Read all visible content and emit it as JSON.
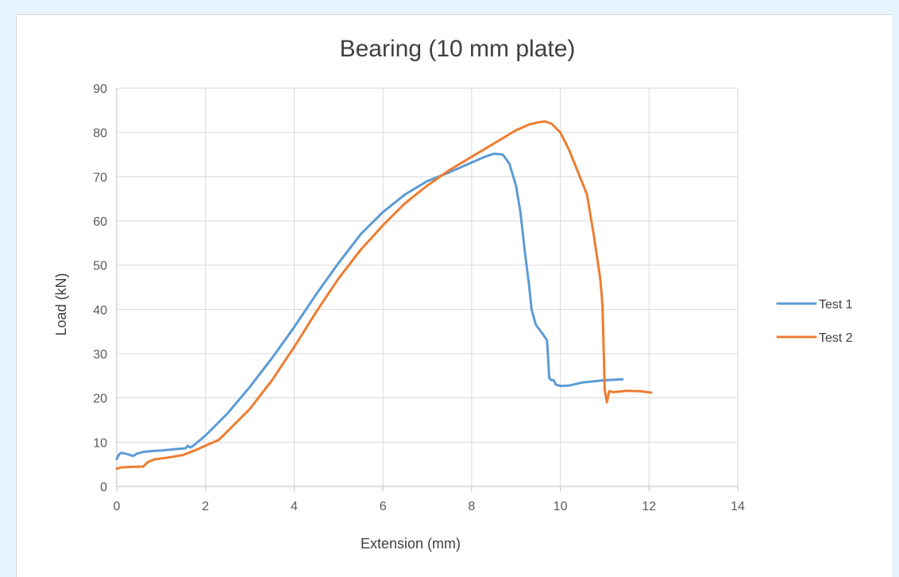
{
  "chart_data": {
    "type": "line",
    "title": "Bearing (10 mm plate)",
    "xlabel": "Extension (mm)",
    "ylabel": "Load (kN)",
    "xlim": [
      0,
      14
    ],
    "ylim": [
      0,
      90
    ],
    "x_ticks": [
      "0",
      "2",
      "4",
      "6",
      "8",
      "10",
      "12",
      "14"
    ],
    "y_ticks": [
      "0",
      "10",
      "20",
      "30",
      "40",
      "50",
      "60",
      "70",
      "80",
      "90"
    ],
    "grid": true,
    "legend_position": "right",
    "series": [
      {
        "name": "Test 1",
        "color": "#5b9bd5",
        "points": [
          [
            0,
            6.2
          ],
          [
            0.05,
            7.2
          ],
          [
            0.1,
            7.6
          ],
          [
            0.2,
            7.4
          ],
          [
            0.3,
            7.1
          ],
          [
            0.35,
            6.9
          ],
          [
            0.4,
            7.0
          ],
          [
            0.45,
            7.4
          ],
          [
            0.6,
            7.8
          ],
          [
            0.8,
            8.0
          ],
          [
            1.0,
            8.1
          ],
          [
            1.2,
            8.3
          ],
          [
            1.4,
            8.5
          ],
          [
            1.55,
            8.6
          ],
          [
            1.6,
            9.2
          ],
          [
            1.65,
            8.8
          ],
          [
            1.7,
            9.0
          ],
          [
            1.8,
            9.8
          ],
          [
            2.0,
            11.5
          ],
          [
            2.5,
            16.5
          ],
          [
            3.0,
            22.5
          ],
          [
            3.5,
            29.0
          ],
          [
            4.0,
            36.0
          ],
          [
            4.5,
            43.5
          ],
          [
            5.0,
            50.5
          ],
          [
            5.5,
            57.0
          ],
          [
            6.0,
            62.0
          ],
          [
            6.5,
            66.0
          ],
          [
            7.0,
            69.0
          ],
          [
            7.5,
            71.0
          ],
          [
            8.0,
            73.2
          ],
          [
            8.3,
            74.5
          ],
          [
            8.5,
            75.2
          ],
          [
            8.7,
            75.0
          ],
          [
            8.85,
            73.0
          ],
          [
            9.0,
            68.0
          ],
          [
            9.1,
            62.0
          ],
          [
            9.2,
            53.0
          ],
          [
            9.3,
            45.0
          ],
          [
            9.35,
            40.0
          ],
          [
            9.45,
            36.5
          ],
          [
            9.6,
            34.5
          ],
          [
            9.7,
            33.0
          ],
          [
            9.75,
            24.5
          ],
          [
            9.8,
            24.0
          ],
          [
            9.85,
            24.0
          ],
          [
            9.9,
            23.0
          ],
          [
            10.0,
            22.7
          ],
          [
            10.2,
            22.8
          ],
          [
            10.5,
            23.5
          ],
          [
            11.0,
            24.0
          ],
          [
            11.4,
            24.2
          ]
        ]
      },
      {
        "name": "Test 2",
        "color": "#ed7d31",
        "points": [
          [
            0,
            4.0
          ],
          [
            0.1,
            4.3
          ],
          [
            0.3,
            4.4
          ],
          [
            0.6,
            4.5
          ],
          [
            0.7,
            5.5
          ],
          [
            0.85,
            6.1
          ],
          [
            1.0,
            6.3
          ],
          [
            1.2,
            6.6
          ],
          [
            1.5,
            7.1
          ],
          [
            1.8,
            8.3
          ],
          [
            2.0,
            9.2
          ],
          [
            2.3,
            10.5
          ],
          [
            2.6,
            13.5
          ],
          [
            3.0,
            17.5
          ],
          [
            3.5,
            24.0
          ],
          [
            4.0,
            31.5
          ],
          [
            4.5,
            39.5
          ],
          [
            5.0,
            47.0
          ],
          [
            5.5,
            53.5
          ],
          [
            6.0,
            59.0
          ],
          [
            6.5,
            64.0
          ],
          [
            7.0,
            68.0
          ],
          [
            7.5,
            71.5
          ],
          [
            8.0,
            74.5
          ],
          [
            8.5,
            77.5
          ],
          [
            9.0,
            80.5
          ],
          [
            9.3,
            81.8
          ],
          [
            9.5,
            82.3
          ],
          [
            9.65,
            82.5
          ],
          [
            9.8,
            82.0
          ],
          [
            10.0,
            80.0
          ],
          [
            10.2,
            76.0
          ],
          [
            10.4,
            71.0
          ],
          [
            10.6,
            66.0
          ],
          [
            10.75,
            57.0
          ],
          [
            10.9,
            47.0
          ],
          [
            10.95,
            41.0
          ],
          [
            10.98,
            30.0
          ],
          [
            11.0,
            22.0
          ],
          [
            11.05,
            19.0
          ],
          [
            11.1,
            21.5
          ],
          [
            11.2,
            21.3
          ],
          [
            11.5,
            21.6
          ],
          [
            11.8,
            21.5
          ],
          [
            12.05,
            21.2
          ]
        ]
      }
    ]
  }
}
